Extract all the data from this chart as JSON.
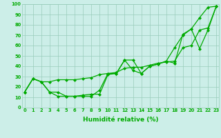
{
  "xlabel": "Humidité relative (%)",
  "background_color": "#cceee8",
  "grid_color": "#99ccbb",
  "line_color": "#00aa00",
  "marker": "D",
  "markersize": 2,
  "linewidth": 0.9,
  "xlim": [
    -0.3,
    23.3
  ],
  "ylim": [
    0,
    100
  ],
  "xticks": [
    0,
    1,
    2,
    3,
    4,
    5,
    6,
    7,
    8,
    9,
    10,
    11,
    12,
    13,
    14,
    15,
    16,
    17,
    18,
    19,
    20,
    21,
    22,
    23
  ],
  "yticks": [
    0,
    10,
    20,
    30,
    40,
    50,
    60,
    70,
    80,
    90,
    100
  ],
  "tick_fontsize": 4.8,
  "xlabel_fontsize": 6.5,
  "line1": [
    15,
    28,
    25,
    15,
    15,
    11,
    11,
    11,
    11,
    17,
    33,
    33,
    46,
    46,
    33,
    40,
    42,
    45,
    58,
    70,
    76,
    87,
    97,
    98
  ],
  "line2": [
    15,
    28,
    25,
    15,
    11,
    11,
    11,
    12,
    13,
    13,
    32,
    33,
    46,
    36,
    33,
    40,
    42,
    45,
    43,
    71,
    76,
    57,
    75,
    98
  ],
  "line3": [
    15,
    28,
    25,
    25,
    27,
    27,
    27,
    28,
    29,
    32,
    33,
    34,
    38,
    39,
    39,
    41,
    43,
    44,
    45,
    58,
    60,
    75,
    77,
    98
  ]
}
